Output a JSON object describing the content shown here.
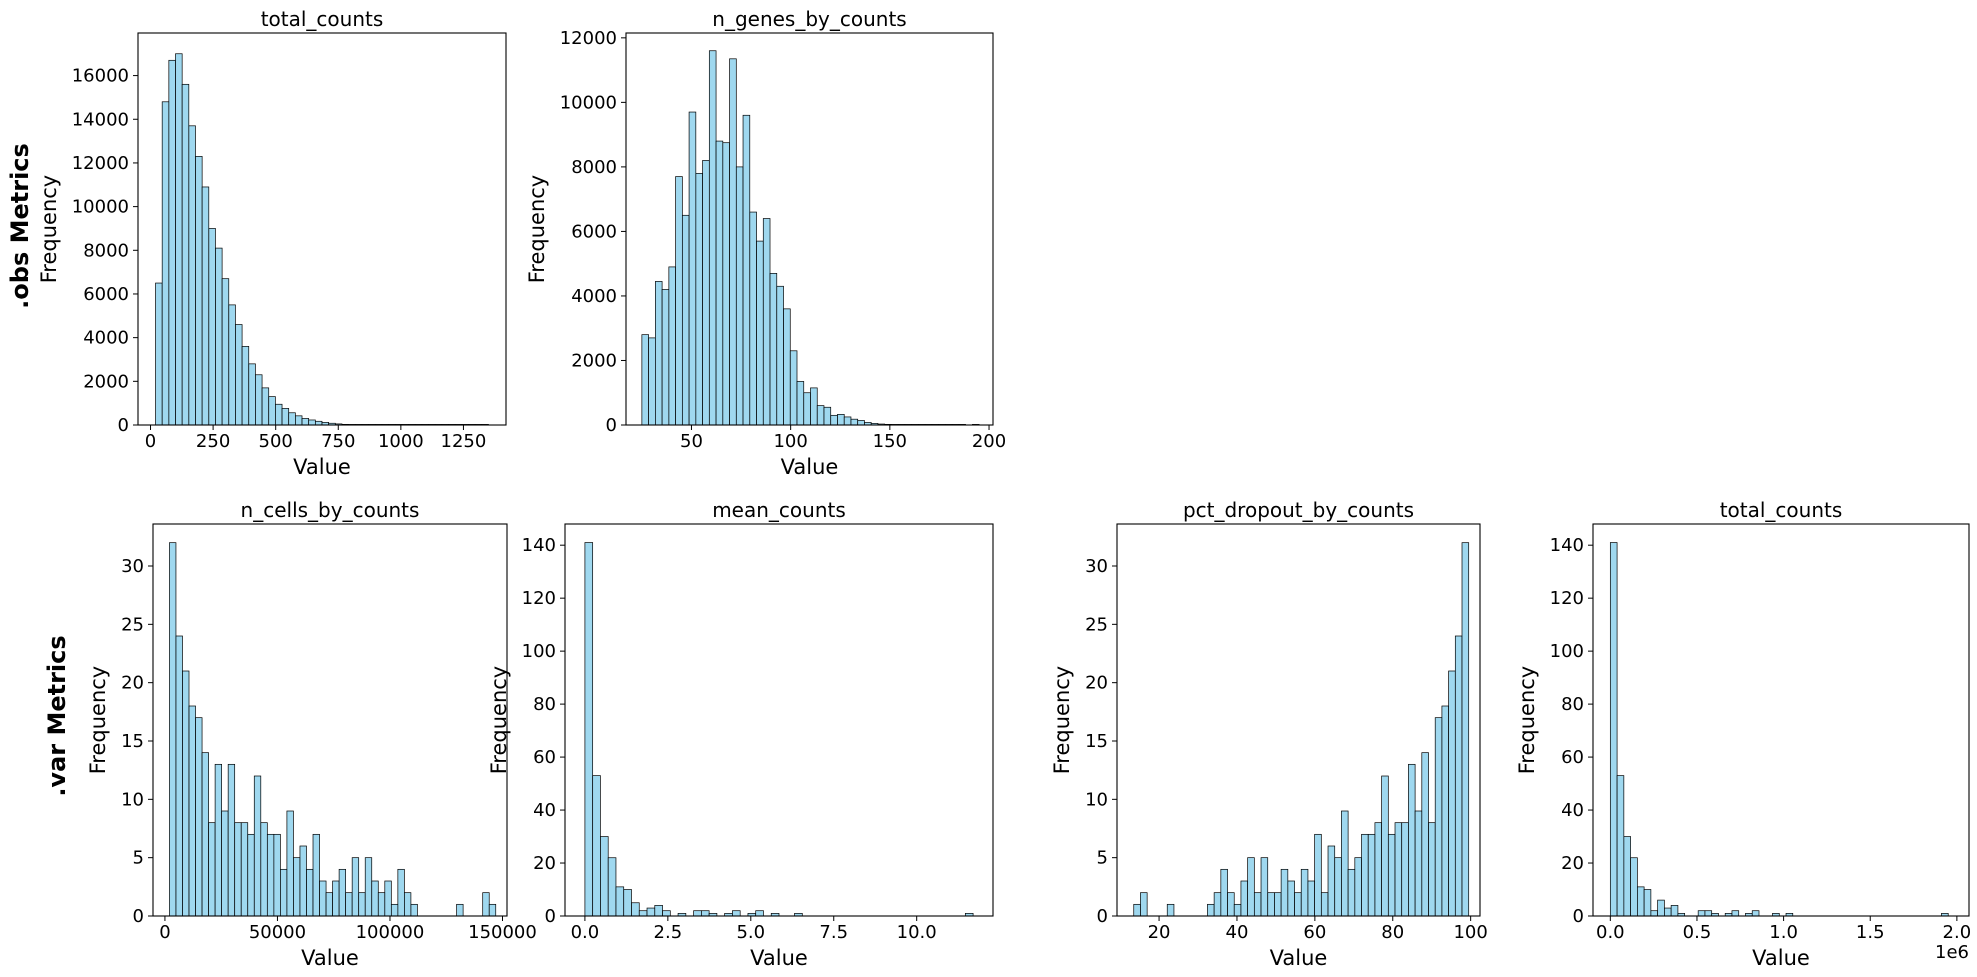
{
  "row_labels": {
    "obs": ".obs Metrics",
    "var": ".var Metrics"
  },
  "colors": {
    "bar_fill": "#87ceeb",
    "bar_edge": "#000000",
    "axes": "#000000"
  },
  "chart_data": [
    {
      "type": "bar",
      "title": "total_counts",
      "xlabel": "Value",
      "ylabel": "Frequency",
      "bin_start": 20,
      "bin_width": 26.6,
      "xlim": [
        -50,
        1420
      ],
      "ylim": [
        0,
        17950
      ],
      "xticks": [
        0,
        250,
        500,
        750,
        1000,
        1250
      ],
      "xtick_labels": [
        "0",
        "250",
        "500",
        "750",
        "1000",
        "1250"
      ],
      "yticks": [
        0,
        2000,
        4000,
        6000,
        8000,
        10000,
        12000,
        14000,
        16000
      ],
      "ytick_labels": [
        "0",
        "2000",
        "4000",
        "6000",
        "8000",
        "10000",
        "12000",
        "14000",
        "16000"
      ],
      "offset_text": "",
      "values": [
        6500,
        14800,
        16700,
        17000,
        15600,
        13700,
        12300,
        10900,
        9000,
        8100,
        6700,
        5500,
        4600,
        3600,
        2800,
        2300,
        1700,
        1300,
        950,
        760,
        560,
        420,
        300,
        230,
        170,
        120,
        80,
        50,
        30,
        20,
        12,
        8,
        5,
        3,
        2,
        2,
        1,
        1,
        1,
        1,
        1,
        1,
        1,
        1,
        1,
        1,
        1,
        1,
        1,
        1
      ]
    },
    {
      "type": "bar",
      "title": "n_genes_by_counts",
      "xlabel": "Value",
      "ylabel": "Frequency",
      "bin_start": 25,
      "bin_width": 3.4,
      "xlim": [
        17,
        202
      ],
      "ylim": [
        0,
        12150
      ],
      "xticks": [
        50,
        100,
        150,
        200
      ],
      "xtick_labels": [
        "50",
        "100",
        "150",
        "200"
      ],
      "yticks": [
        0,
        2000,
        4000,
        6000,
        8000,
        10000,
        12000
      ],
      "ytick_labels": [
        "0",
        "2000",
        "4000",
        "6000",
        "8000",
        "10000",
        "12000"
      ],
      "offset_text": "",
      "values": [
        2800,
        2700,
        4450,
        4200,
        4900,
        7700,
        6500,
        9700,
        7800,
        8200,
        11600,
        8800,
        8750,
        11350,
        8000,
        9600,
        6600,
        5700,
        6400,
        4700,
        4300,
        3600,
        2300,
        1350,
        1000,
        1150,
        600,
        550,
        300,
        330,
        250,
        180,
        140,
        80,
        50,
        30,
        20,
        12,
        8,
        5,
        3,
        2,
        1,
        1,
        1,
        1,
        1,
        1,
        0,
        1
      ]
    },
    {
      "type": "bar",
      "title": "n_cells_by_counts",
      "xlabel": "Value",
      "ylabel": "Frequency",
      "bin_start": 2000,
      "bin_width": 2900,
      "xlim": [
        -5300,
        152000
      ],
      "ylim": [
        0,
        33.6
      ],
      "xticks": [
        0,
        50000,
        100000,
        150000
      ],
      "xtick_labels": [
        "0",
        "50000",
        "100000",
        "150000"
      ],
      "yticks": [
        0,
        5,
        10,
        15,
        20,
        25,
        30
      ],
      "ytick_labels": [
        "0",
        "5",
        "10",
        "15",
        "20",
        "25",
        "30"
      ],
      "offset_text": "",
      "values": [
        32,
        24,
        21,
        18,
        17,
        14,
        8,
        13,
        9,
        13,
        8,
        8,
        7,
        12,
        8,
        7,
        7,
        4,
        9,
        5,
        6,
        4,
        7,
        3,
        2,
        3,
        4,
        2,
        5,
        2,
        5,
        3,
        2,
        3,
        1,
        4,
        2,
        1,
        0,
        0,
        0,
        0,
        0,
        0,
        1,
        0,
        0,
        0,
        2,
        1
      ]
    },
    {
      "type": "bar",
      "title": "mean_counts",
      "xlabel": "Value",
      "ylabel": "Frequency",
      "bin_start": 0.0,
      "bin_width": 0.234,
      "xlim": [
        -0.6,
        12.3
      ],
      "ylim": [
        0,
        148
      ],
      "xticks": [
        0,
        2.5,
        5,
        7.5,
        10
      ],
      "xtick_labels": [
        "0.0",
        "2.5",
        "5.0",
        "7.5",
        "10.0"
      ],
      "yticks": [
        0,
        20,
        40,
        60,
        80,
        100,
        120,
        140
      ],
      "ytick_labels": [
        "0",
        "20",
        "40",
        "60",
        "80",
        "100",
        "120",
        "140"
      ],
      "offset_text": "",
      "values": [
        141,
        53,
        30,
        22,
        11,
        10,
        5,
        2,
        3,
        4,
        2,
        0,
        1,
        0,
        2,
        2,
        1,
        0,
        1,
        2,
        0,
        1,
        2,
        0,
        1,
        0,
        0,
        1,
        0,
        0,
        0,
        0,
        0,
        0,
        0,
        0,
        0,
        0,
        0,
        0,
        0,
        0,
        0,
        0,
        0,
        0,
        0,
        0,
        0,
        1
      ]
    },
    {
      "type": "bar",
      "title": "pct_dropout_by_counts",
      "xlabel": "Value",
      "ylabel": "Frequency",
      "bin_start": 13.5,
      "bin_width": 1.72,
      "xlim": [
        9.2,
        102.4
      ],
      "ylim": [
        0,
        33.6
      ],
      "xticks": [
        20,
        40,
        60,
        80,
        100
      ],
      "xtick_labels": [
        "20",
        "40",
        "60",
        "80",
        "100"
      ],
      "yticks": [
        0,
        5,
        10,
        15,
        20,
        25,
        30
      ],
      "ytick_labels": [
        "0",
        "5",
        "10",
        "15",
        "20",
        "25",
        "30"
      ],
      "offset_text": "",
      "values": [
        1,
        2,
        0,
        0,
        0,
        1,
        0,
        0,
        0,
        0,
        0,
        1,
        2,
        4,
        2,
        1,
        3,
        5,
        2,
        5,
        2,
        2,
        4,
        3,
        2,
        4,
        3,
        7,
        2,
        6,
        5,
        9,
        4,
        5,
        7,
        7,
        8,
        12,
        7,
        8,
        8,
        13,
        9,
        14,
        8,
        17,
        18,
        21,
        24,
        32
      ]
    },
    {
      "type": "bar",
      "title": "total_counts",
      "xlabel": "Value",
      "ylabel": "Frequency",
      "bin_start": 0.0,
      "bin_width": 0.039,
      "xlim": [
        -0.1,
        2.07
      ],
      "ylim": [
        0,
        148
      ],
      "xticks": [
        0,
        0.5,
        1.0,
        1.5,
        2.0
      ],
      "xtick_labels": [
        "0.0",
        "0.5",
        "1.0",
        "1.5",
        "2.0"
      ],
      "yticks": [
        0,
        20,
        40,
        60,
        80,
        100,
        120,
        140
      ],
      "ytick_labels": [
        "0",
        "20",
        "40",
        "60",
        "80",
        "100",
        "120",
        "140"
      ],
      "offset_text": "1e6",
      "values": [
        141,
        53,
        30,
        22,
        11,
        10,
        2,
        6,
        3,
        4,
        1,
        0,
        0,
        2,
        2,
        1,
        0,
        1,
        2,
        0,
        1,
        2,
        0,
        0,
        1,
        0,
        1,
        0,
        0,
        0,
        0,
        0,
        0,
        0,
        0,
        0,
        0,
        0,
        0,
        0,
        0,
        0,
        0,
        0,
        0,
        0,
        0,
        0,
        0,
        1
      ]
    }
  ]
}
